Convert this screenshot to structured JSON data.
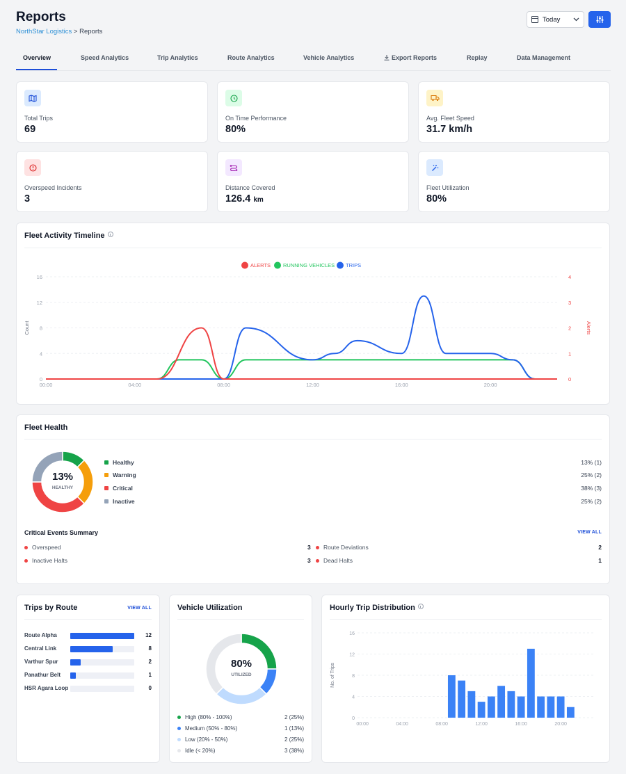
{
  "header": {
    "title": "Reports",
    "breadcrumb_root": "NorthStar Logistics",
    "breadcrumb_sep": ">",
    "breadcrumb_current": "Reports",
    "date_filter": "Today"
  },
  "tabs": [
    "Overview",
    "Speed Analytics",
    "Trip Analytics",
    "Route Analytics",
    "Vehicle Analytics",
    "Export Reports",
    "Replay",
    "Data Management"
  ],
  "active_tab": "Overview",
  "kpis": [
    {
      "label": "Total Trips",
      "value": "69",
      "unit": "",
      "icon": "map-icon",
      "bg": "#dbeafe",
      "fg": "#1d4ed8"
    },
    {
      "label": "On Time Performance",
      "value": "80%",
      "unit": "",
      "icon": "clock-icon",
      "bg": "#dcfce7",
      "fg": "#16a34a"
    },
    {
      "label": "Avg. Fleet Speed",
      "value": "31.7 km/h",
      "unit": "",
      "icon": "truck-icon",
      "bg": "#fef3c7",
      "fg": "#d97706"
    },
    {
      "label": "Overspeed Incidents",
      "value": "3",
      "unit": "",
      "icon": "alert-icon",
      "bg": "#fee2e2",
      "fg": "#dc2626"
    },
    {
      "label": "Distance Covered",
      "value": "126.4",
      "unit": "km",
      "icon": "route-icon",
      "bg": "#f3e8ff",
      "fg": "#a21caf"
    },
    {
      "label": "Fleet Utilization",
      "value": "80%",
      "unit": "",
      "icon": "wand-icon",
      "bg": "#dbeafe",
      "fg": "#2563eb"
    }
  ],
  "timeline": {
    "title": "Fleet Activity Timeline",
    "legend": [
      {
        "name": "ALERTS",
        "color": "#ef4444"
      },
      {
        "name": "RUNNING VEHICLES",
        "color": "#22c55e"
      },
      {
        "name": "TRIPS",
        "color": "#2563eb"
      }
    ]
  },
  "fleet_health": {
    "title": "Fleet Health",
    "center_value": "13%",
    "center_label": "HEALTHY",
    "items": [
      {
        "label": "Healthy",
        "pct": "13% (1)",
        "color": "#16a34a",
        "share": 0.125
      },
      {
        "label": "Warning",
        "pct": "25% (2)",
        "color": "#f59e0b",
        "share": 0.25
      },
      {
        "label": "Critical",
        "pct": "38% (3)",
        "color": "#ef4444",
        "share": 0.375
      },
      {
        "label": "Inactive",
        "pct": "25% (2)",
        "color": "#94a3b8",
        "share": 0.25
      }
    ],
    "events_title": "Critical Events Summary",
    "view_all": "VIEW ALL",
    "events": [
      {
        "label": "Overspeed",
        "value": "3"
      },
      {
        "label": "Route Deviations",
        "value": "2"
      },
      {
        "label": "Inactive Halts",
        "value": "3"
      },
      {
        "label": "Dead Halts",
        "value": "1"
      }
    ]
  },
  "trips_by_route": {
    "title": "Trips by Route",
    "view_all": "VIEW ALL",
    "max": 12,
    "routes": [
      {
        "label": "Route Alpha",
        "value": 12
      },
      {
        "label": "Central Link",
        "value": 8
      },
      {
        "label": "Varthur Spur",
        "value": 2
      },
      {
        "label": "Panathur Belt",
        "value": 1
      },
      {
        "label": "HSR Agara Loop",
        "value": 0
      }
    ]
  },
  "vehicle_utilization": {
    "title": "Vehicle Utilization",
    "center_value": "80%",
    "center_label": "UTILIZED",
    "rows": [
      {
        "label": "High (80% - 100%)",
        "value": "2 (25%)",
        "color": "#16a34a",
        "share": 0.25
      },
      {
        "label": "Medium (50% - 80%)",
        "value": "1 (13%)",
        "color": "#3b82f6",
        "share": 0.125
      },
      {
        "label": "Low (20% - 50%)",
        "value": "2 (25%)",
        "color": "#bfdbfe",
        "share": 0.25
      },
      {
        "label": "Idle (< 20%)",
        "value": "3 (38%)",
        "color": "#e5e7eb",
        "share": 0.375
      }
    ]
  },
  "chart_data": [
    {
      "type": "line",
      "title": "Fleet Activity Timeline",
      "xlabel": "",
      "ylabel": "Count",
      "y2label": "Alerts",
      "x_ticks": [
        "00:00",
        "04:00",
        "08:00",
        "12:00",
        "16:00",
        "20:00"
      ],
      "xlim": [
        0,
        23
      ],
      "ylim": [
        0,
        16
      ],
      "y_ticks": [
        0,
        4,
        8,
        12,
        16
      ],
      "y2lim": [
        0,
        4
      ],
      "y2_ticks": [
        0,
        1,
        2,
        3,
        4
      ],
      "legend": "top-center",
      "series": [
        {
          "name": "ALERTS",
          "axis": "right",
          "x": [
            0,
            5,
            7,
            8,
            23
          ],
          "y": [
            0,
            0,
            2,
            0,
            0
          ]
        },
        {
          "name": "RUNNING VEHICLES",
          "axis": "left",
          "x": [
            0,
            5,
            6,
            7,
            8,
            9,
            21,
            22,
            23
          ],
          "y": [
            0,
            0,
            3,
            3,
            0,
            3,
            3,
            0,
            0
          ]
        },
        {
          "name": "TRIPS",
          "axis": "left",
          "x": [
            0,
            7,
            8,
            9,
            12,
            13,
            14,
            16,
            17,
            18,
            20,
            21,
            22,
            23
          ],
          "y": [
            0,
            0,
            0,
            8,
            3,
            4,
            6,
            4,
            13,
            4,
            4,
            3,
            0,
            0
          ]
        }
      ]
    },
    {
      "type": "bar",
      "title": "Hourly Trip Distribution",
      "xlabel": "",
      "ylabel": "No. of Trips",
      "x_ticks": [
        "00:00",
        "04:00",
        "08:00",
        "12:00",
        "16:00",
        "20:00"
      ],
      "xlim": [
        0,
        24
      ],
      "ylim": [
        0,
        16
      ],
      "y_ticks": [
        0,
        4,
        8,
        12,
        16
      ],
      "hours": [
        9,
        10,
        11,
        12,
        13,
        14,
        15,
        16,
        17,
        18,
        19,
        20,
        21
      ],
      "values": [
        8,
        7,
        5,
        3,
        4,
        6,
        5,
        4,
        13,
        4,
        4,
        4,
        2
      ]
    }
  ]
}
